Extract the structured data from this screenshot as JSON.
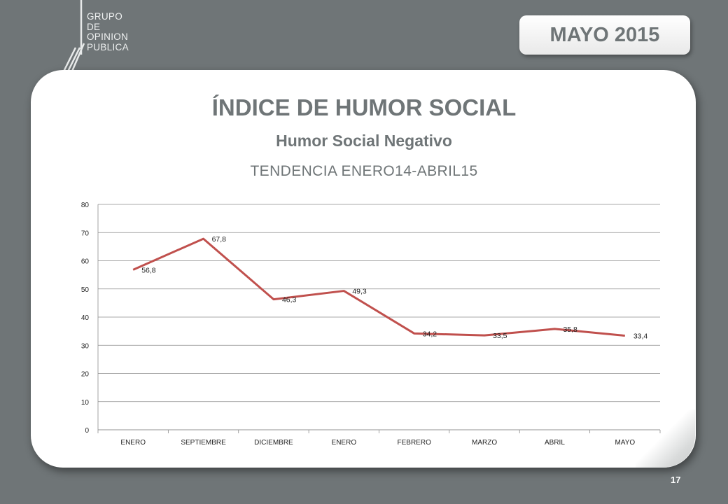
{
  "header": {
    "logo_lines": [
      "GRUPO",
      "DE",
      "OPINION",
      "PUBLICA"
    ],
    "date_badge": "MAYO 2015"
  },
  "slide": {
    "title": "ÍNDICE DE HUMOR SOCIAL",
    "subtitle": "Humor Social Negativo",
    "range": "TENDENCIA ENERO14-ABRIL15",
    "page_number": "17"
  },
  "chart_data": {
    "type": "line",
    "categories": [
      "ENERO",
      "SEPTIEMBRE",
      "DICIEMBRE",
      "ENERO",
      "FEBRERO",
      "MARZO",
      "ABRIL",
      "MAYO"
    ],
    "series": [
      {
        "values": [
          56.8,
          67.8,
          46.3,
          49.3,
          34.2,
          33.5,
          35.8,
          33.4
        ],
        "labels": [
          "56,8",
          "67,8",
          "46,3",
          "49,3",
          "34,2",
          "33,5",
          "35,8",
          "33,4"
        ],
        "color": "#c0504d"
      }
    ],
    "ylim": [
      0,
      80
    ],
    "yticks": [
      0,
      10,
      20,
      30,
      40,
      50,
      60,
      70,
      80
    ],
    "grid": true,
    "legend": "none"
  }
}
